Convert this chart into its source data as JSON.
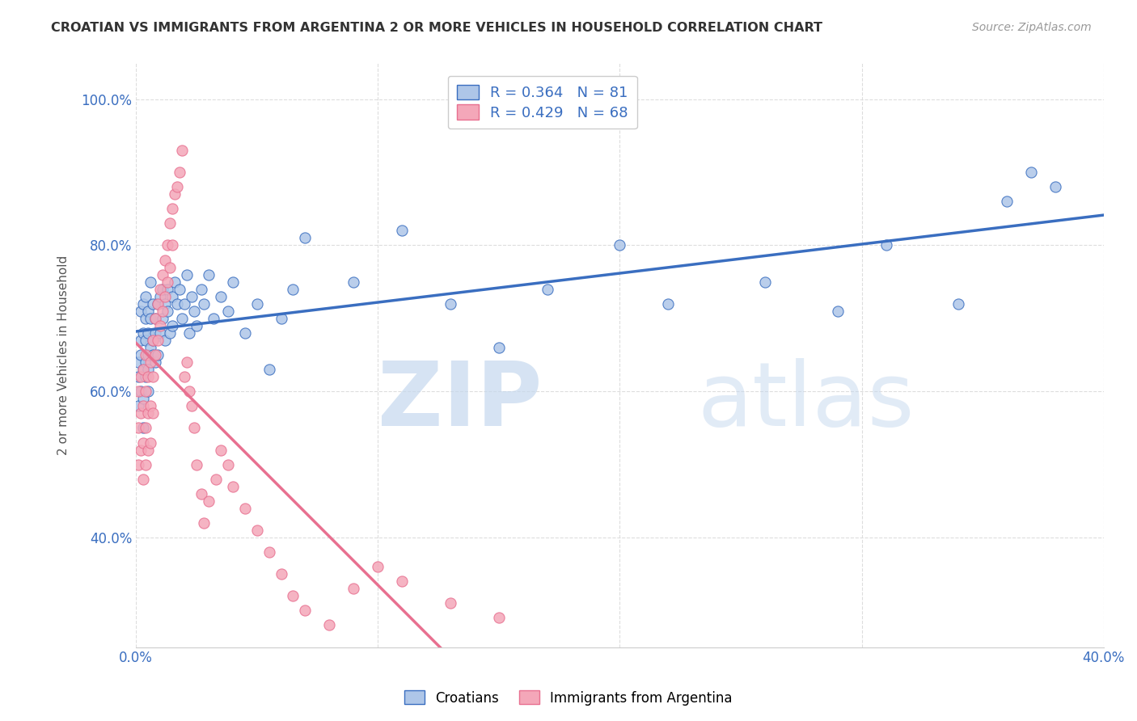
{
  "title": "CROATIAN VS IMMIGRANTS FROM ARGENTINA 2 OR MORE VEHICLES IN HOUSEHOLD CORRELATION CHART",
  "source": "Source: ZipAtlas.com",
  "ylabel": "2 or more Vehicles in Household",
  "x_min": 0.0,
  "x_max": 0.4,
  "y_min": 0.25,
  "y_max": 1.05,
  "blue_R": 0.364,
  "blue_N": 81,
  "pink_R": 0.429,
  "pink_N": 68,
  "blue_color": "#AEC6E8",
  "pink_color": "#F4A7B9",
  "blue_line_color": "#3A6EC0",
  "pink_line_color": "#E87090",
  "legend_label_blue": "Croatians",
  "legend_label_pink": "Immigrants from Argentina",
  "background_color": "#FFFFFF",
  "grid_color": "#DDDDDD",
  "blue_scatter_x": [
    0.001,
    0.001,
    0.001,
    0.002,
    0.002,
    0.002,
    0.002,
    0.003,
    0.003,
    0.003,
    0.003,
    0.003,
    0.004,
    0.004,
    0.004,
    0.004,
    0.004,
    0.005,
    0.005,
    0.005,
    0.005,
    0.005,
    0.006,
    0.006,
    0.006,
    0.007,
    0.007,
    0.007,
    0.008,
    0.008,
    0.008,
    0.009,
    0.009,
    0.01,
    0.01,
    0.011,
    0.011,
    0.012,
    0.012,
    0.013,
    0.013,
    0.014,
    0.015,
    0.015,
    0.016,
    0.017,
    0.018,
    0.019,
    0.02,
    0.021,
    0.022,
    0.023,
    0.024,
    0.025,
    0.027,
    0.028,
    0.03,
    0.032,
    0.035,
    0.038,
    0.04,
    0.045,
    0.05,
    0.055,
    0.06,
    0.065,
    0.07,
    0.09,
    0.11,
    0.13,
    0.15,
    0.17,
    0.2,
    0.22,
    0.26,
    0.29,
    0.31,
    0.34,
    0.36,
    0.37,
    0.38
  ],
  "blue_scatter_y": [
    0.64,
    0.62,
    0.58,
    0.65,
    0.67,
    0.71,
    0.6,
    0.63,
    0.68,
    0.72,
    0.59,
    0.55,
    0.64,
    0.67,
    0.7,
    0.62,
    0.73,
    0.65,
    0.68,
    0.63,
    0.71,
    0.6,
    0.66,
    0.7,
    0.75,
    0.67,
    0.72,
    0.65,
    0.7,
    0.64,
    0.68,
    0.72,
    0.65,
    0.73,
    0.68,
    0.74,
    0.7,
    0.72,
    0.67,
    0.74,
    0.71,
    0.68,
    0.73,
    0.69,
    0.75,
    0.72,
    0.74,
    0.7,
    0.72,
    0.76,
    0.68,
    0.73,
    0.71,
    0.69,
    0.74,
    0.72,
    0.76,
    0.7,
    0.73,
    0.71,
    0.75,
    0.68,
    0.72,
    0.63,
    0.7,
    0.74,
    0.81,
    0.75,
    0.82,
    0.72,
    0.66,
    0.74,
    0.8,
    0.72,
    0.75,
    0.71,
    0.8,
    0.72,
    0.86,
    0.9,
    0.88
  ],
  "pink_scatter_x": [
    0.001,
    0.001,
    0.001,
    0.002,
    0.002,
    0.002,
    0.003,
    0.003,
    0.003,
    0.003,
    0.004,
    0.004,
    0.004,
    0.004,
    0.005,
    0.005,
    0.005,
    0.006,
    0.006,
    0.006,
    0.007,
    0.007,
    0.007,
    0.008,
    0.008,
    0.009,
    0.009,
    0.01,
    0.01,
    0.011,
    0.011,
    0.012,
    0.012,
    0.013,
    0.013,
    0.014,
    0.014,
    0.015,
    0.015,
    0.016,
    0.017,
    0.018,
    0.019,
    0.02,
    0.021,
    0.022,
    0.023,
    0.024,
    0.025,
    0.027,
    0.028,
    0.03,
    0.033,
    0.035,
    0.038,
    0.04,
    0.045,
    0.05,
    0.055,
    0.06,
    0.065,
    0.07,
    0.08,
    0.09,
    0.1,
    0.11,
    0.13,
    0.15
  ],
  "pink_scatter_y": [
    0.55,
    0.6,
    0.5,
    0.57,
    0.52,
    0.62,
    0.58,
    0.53,
    0.48,
    0.63,
    0.6,
    0.55,
    0.5,
    0.65,
    0.62,
    0.57,
    0.52,
    0.64,
    0.58,
    0.53,
    0.67,
    0.62,
    0.57,
    0.7,
    0.65,
    0.72,
    0.67,
    0.74,
    0.69,
    0.76,
    0.71,
    0.78,
    0.73,
    0.8,
    0.75,
    0.83,
    0.77,
    0.85,
    0.8,
    0.87,
    0.88,
    0.9,
    0.93,
    0.62,
    0.64,
    0.6,
    0.58,
    0.55,
    0.5,
    0.46,
    0.42,
    0.45,
    0.48,
    0.52,
    0.5,
    0.47,
    0.44,
    0.41,
    0.38,
    0.35,
    0.32,
    0.3,
    0.28,
    0.33,
    0.36,
    0.34,
    0.31,
    0.29
  ]
}
